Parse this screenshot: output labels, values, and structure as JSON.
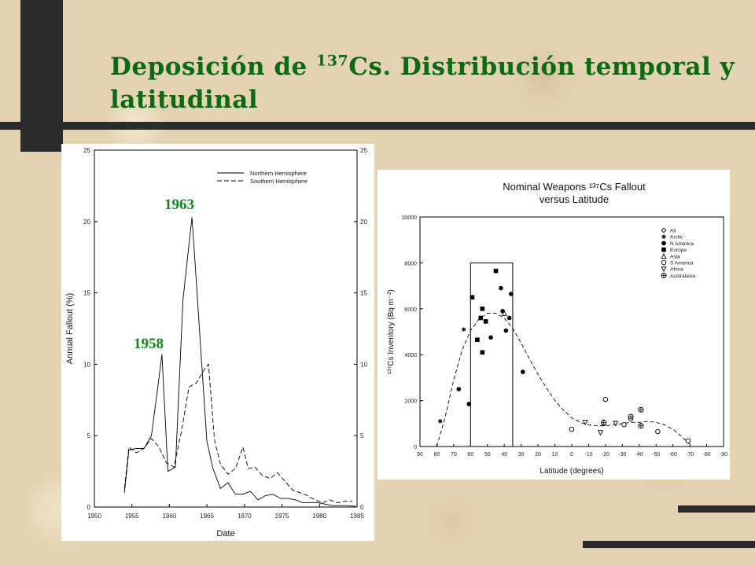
{
  "slide": {
    "title_before": "Deposición de ",
    "title_sup": "137",
    "title_after": "Cs. Distribución temporal y latitudinal"
  },
  "colors": {
    "title": "#0b6b12",
    "annotation": "#0b8a1a",
    "bars": "#2b2b2b"
  },
  "chart_data": [
    {
      "type": "line",
      "xlabel": "Date",
      "ylabel": "Annual Fallout (%)",
      "xlim": [
        1950,
        1985
      ],
      "ylim": [
        0,
        25
      ],
      "xticks": [
        "1950",
        "1955",
        "1960",
        "1965",
        "1970",
        "1975",
        "1980",
        "1985"
      ],
      "yticks": [
        "0",
        "5",
        "10",
        "15",
        "20",
        "25"
      ],
      "grid": false,
      "legend_position": "top-right",
      "annotations": [
        "1963",
        "1958"
      ],
      "series": [
        {
          "name": "Northern Hemisphere",
          "style": "solid",
          "x": [
            1954,
            1954.6,
            1955.6,
            1956.6,
            1957.6,
            1958.4,
            1959,
            1959.8,
            1960.8,
            1961.8,
            1963,
            1963.5,
            1964.3,
            1965,
            1965.8,
            1966.8,
            1967.8,
            1968.8,
            1969.8,
            1970.8,
            1971.8,
            1972.8,
            1973.8,
            1974.8,
            1975.8,
            1976.8,
            1977.8,
            1978.8,
            1979.8,
            1980.8,
            1981.8,
            1982.8,
            1983.8,
            1984.8
          ],
          "y": [
            1.0,
            4.0,
            4.1,
            4.1,
            5.0,
            8.2,
            10.7,
            2.5,
            2.8,
            14.5,
            20.3,
            16.5,
            10.0,
            4.6,
            2.7,
            1.3,
            1.7,
            0.9,
            0.9,
            1.1,
            0.5,
            0.8,
            0.9,
            0.6,
            0.6,
            0.5,
            0.3,
            0.3,
            0.3,
            0.2,
            0.1,
            0.1,
            0.1,
            0.05
          ]
        },
        {
          "name": "Southern Hemisphere",
          "style": "dashed",
          "x": [
            1954,
            1954.6,
            1955.6,
            1956.6,
            1957.6,
            1958.6,
            1959.6,
            1960.6,
            1961.6,
            1962.6,
            1963.6,
            1964.6,
            1965.2,
            1966,
            1966.8,
            1967.8,
            1968.8,
            1969.8,
            1970.5,
            1971.4,
            1972.4,
            1973.4,
            1974.4,
            1975.4,
            1976.4,
            1977.4,
            1978.4,
            1979.4,
            1980.4,
            1981.4,
            1982.4,
            1983.4,
            1984.4
          ],
          "y": [
            1.3,
            4.2,
            3.8,
            4.1,
            4.8,
            4.2,
            3.1,
            2.8,
            5.3,
            8.4,
            8.7,
            9.6,
            10.0,
            4.7,
            3.0,
            2.3,
            2.7,
            4.2,
            2.7,
            2.8,
            2.2,
            2.0,
            2.4,
            1.8,
            1.2,
            1.0,
            0.8,
            0.5,
            0.3,
            0.5,
            0.3,
            0.4,
            0.4
          ]
        }
      ]
    },
    {
      "type": "scatter",
      "title": "Nominal Weapons ¹³⁷Cs Fallout",
      "subtitle": "versus Latitude",
      "xlabel": "Latitude (degrees)",
      "ylabel": "¹³⁷Cs Inventory (Bq m⁻²)",
      "xlim": [
        90,
        -90
      ],
      "ylim": [
        0,
        10000
      ],
      "xticks": [
        "90",
        "80",
        "70",
        "60",
        "50",
        "40",
        "30",
        "20",
        "10",
        "0",
        "-10",
        "-20",
        "-30",
        "-40",
        "-50",
        "-60",
        "-70",
        "-80",
        "-90"
      ],
      "yticks": [
        "0",
        "2000",
        "4000",
        "6000",
        "8000",
        "10000"
      ],
      "grid": false,
      "legend_position": "top-right",
      "legend": [
        "All",
        "Arctic",
        "N America",
        "Europe",
        "Asia",
        "S America",
        "Africa",
        "Australasia"
      ],
      "series": [
        {
          "name": "Arctic",
          "marker": "asterisk",
          "points": [
            [
              78,
              1100
            ],
            [
              64,
              5100
            ]
          ]
        },
        {
          "name": "N America",
          "marker": "circle-filled",
          "points": [
            [
              67,
              2500
            ],
            [
              61,
              1850
            ],
            [
              48,
              4750
            ],
            [
              42,
              6900
            ],
            [
              41,
              5900
            ],
            [
              39,
              5050
            ],
            [
              37,
              5600
            ],
            [
              36,
              6650
            ],
            [
              29,
              3250
            ]
          ]
        },
        {
          "name": "Europe",
          "marker": "square-filled",
          "points": [
            [
              59,
              6500
            ],
            [
              56,
              4650
            ],
            [
              54,
              5600
            ],
            [
              53,
              6000
            ],
            [
              53,
              4100
            ],
            [
              51,
              5450
            ],
            [
              45,
              7650
            ]
          ]
        },
        {
          "name": "Asia",
          "marker": "triangle",
          "points": [
            [
              40,
              5800
            ]
          ]
        },
        {
          "name": "S America",
          "marker": "circle-open",
          "points": [
            [
              0,
              750
            ],
            [
              -19,
              1000
            ],
            [
              -20,
              2050
            ],
            [
              -31,
              950
            ],
            [
              -35,
              1200
            ],
            [
              -51,
              650
            ],
            [
              -69,
              250
            ]
          ]
        },
        {
          "name": "Africa",
          "marker": "triangle-down",
          "points": [
            [
              -8,
              1050
            ],
            [
              -17,
              600
            ],
            [
              -26,
              1000
            ]
          ]
        },
        {
          "name": "Australasia",
          "marker": "circle-plus",
          "points": [
            [
              -19,
              1050
            ],
            [
              -35,
              1300
            ],
            [
              -41,
              1600
            ],
            [
              -41,
              900
            ]
          ]
        }
      ],
      "fit_curve": {
        "style": "dashed",
        "x": [
          80,
          75,
          70,
          65,
          60,
          55,
          50,
          45,
          40,
          35,
          30,
          25,
          20,
          15,
          10,
          5,
          0,
          -5,
          -10,
          -15,
          -20,
          -25,
          -30,
          -35,
          -40,
          -45,
          -50,
          -55,
          -60,
          -65,
          -70
        ],
        "y": [
          0,
          1300,
          2900,
          4200,
          5050,
          5550,
          5800,
          5800,
          5600,
          5150,
          4500,
          3800,
          3150,
          2550,
          2000,
          1600,
          1250,
          1050,
          950,
          900,
          900,
          950,
          1000,
          1050,
          1050,
          1100,
          1050,
          950,
          750,
          450,
          100
        ]
      },
      "highlight_box": {
        "lat_range": [
          60,
          35
        ],
        "inventory_range": [
          0,
          8000
        ]
      }
    }
  ]
}
